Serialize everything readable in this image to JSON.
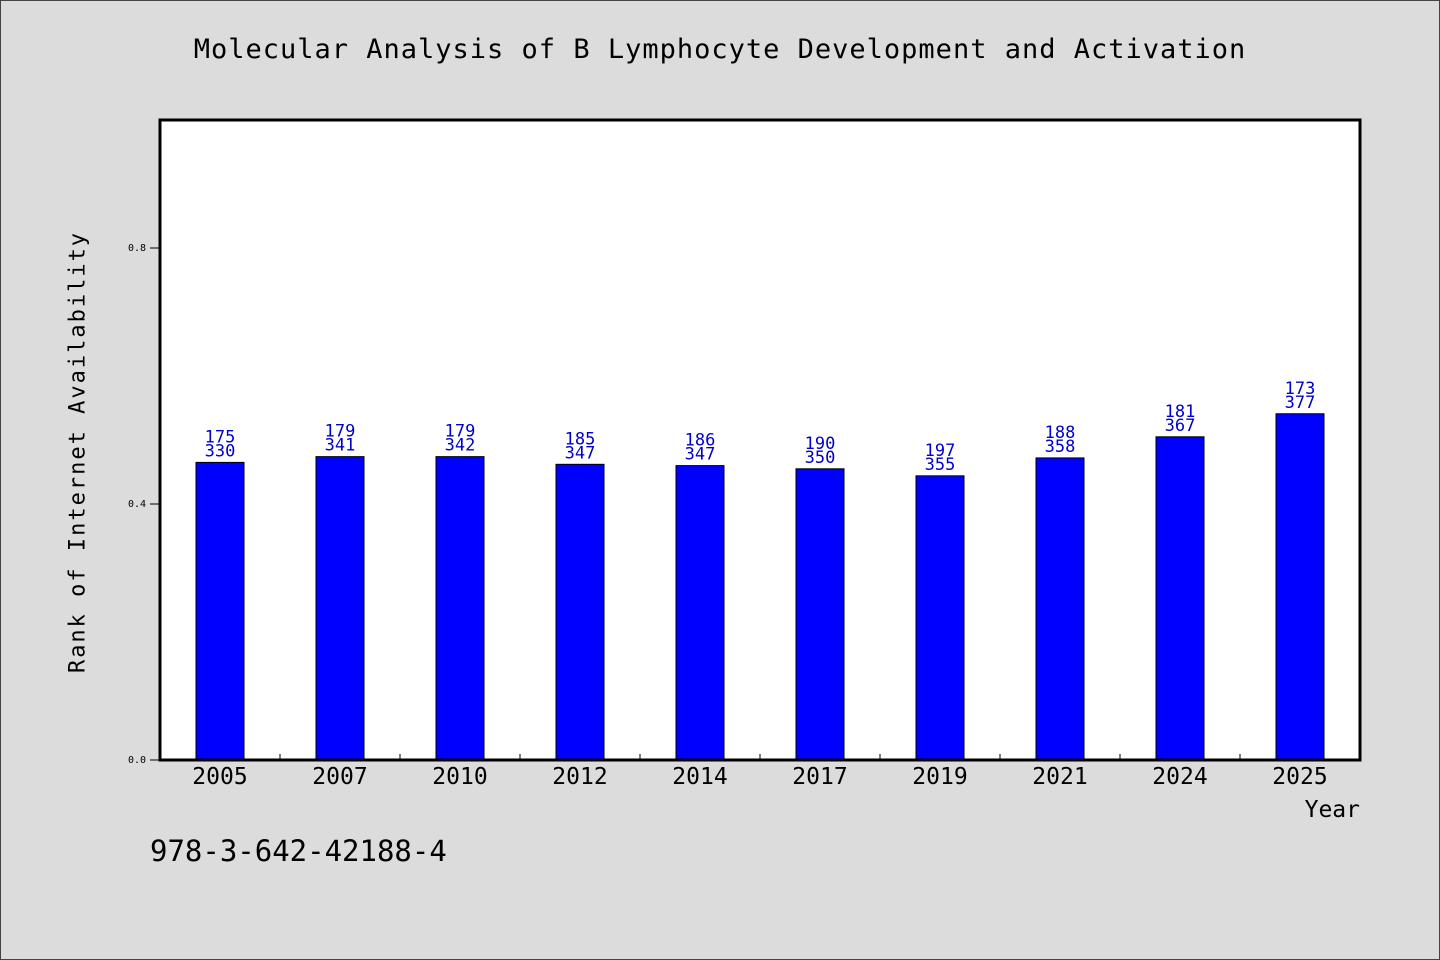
{
  "chart_data": {
    "type": "bar",
    "title": "Molecular Analysis of B Lymphocyte Development and Activation",
    "xlabel": "Year",
    "ylabel": "Rank of Internet Availability",
    "categories": [
      "2005",
      "2007",
      "2010",
      "2012",
      "2014",
      "2017",
      "2019",
      "2021",
      "2024",
      "2025"
    ],
    "series": [
      {
        "values": [
          0.465,
          0.474,
          0.474,
          0.462,
          0.46,
          0.455,
          0.444,
          0.472,
          0.505,
          0.541
        ]
      }
    ],
    "bar_labels_top": [
      "175",
      "179",
      "179",
      "185",
      "186",
      "190",
      "197",
      "188",
      "181",
      "173"
    ],
    "bar_labels_bottom": [
      "330",
      "341",
      "342",
      "347",
      "347",
      "350",
      "355",
      "358",
      "367",
      "377"
    ],
    "yticks": [
      "0.0",
      "0.4",
      "0.8"
    ],
    "ytick_values": [
      0.0,
      0.4,
      0.8
    ],
    "ylim": [
      0,
      1.0
    ],
    "grid": false,
    "colors": {
      "bar": "#0000ff",
      "bar_edge": "#000000",
      "label": "#0000cc",
      "background": "#dcdcdc",
      "plot_background": "#ffffff"
    }
  },
  "footer_text": "978-3-642-42188-4"
}
